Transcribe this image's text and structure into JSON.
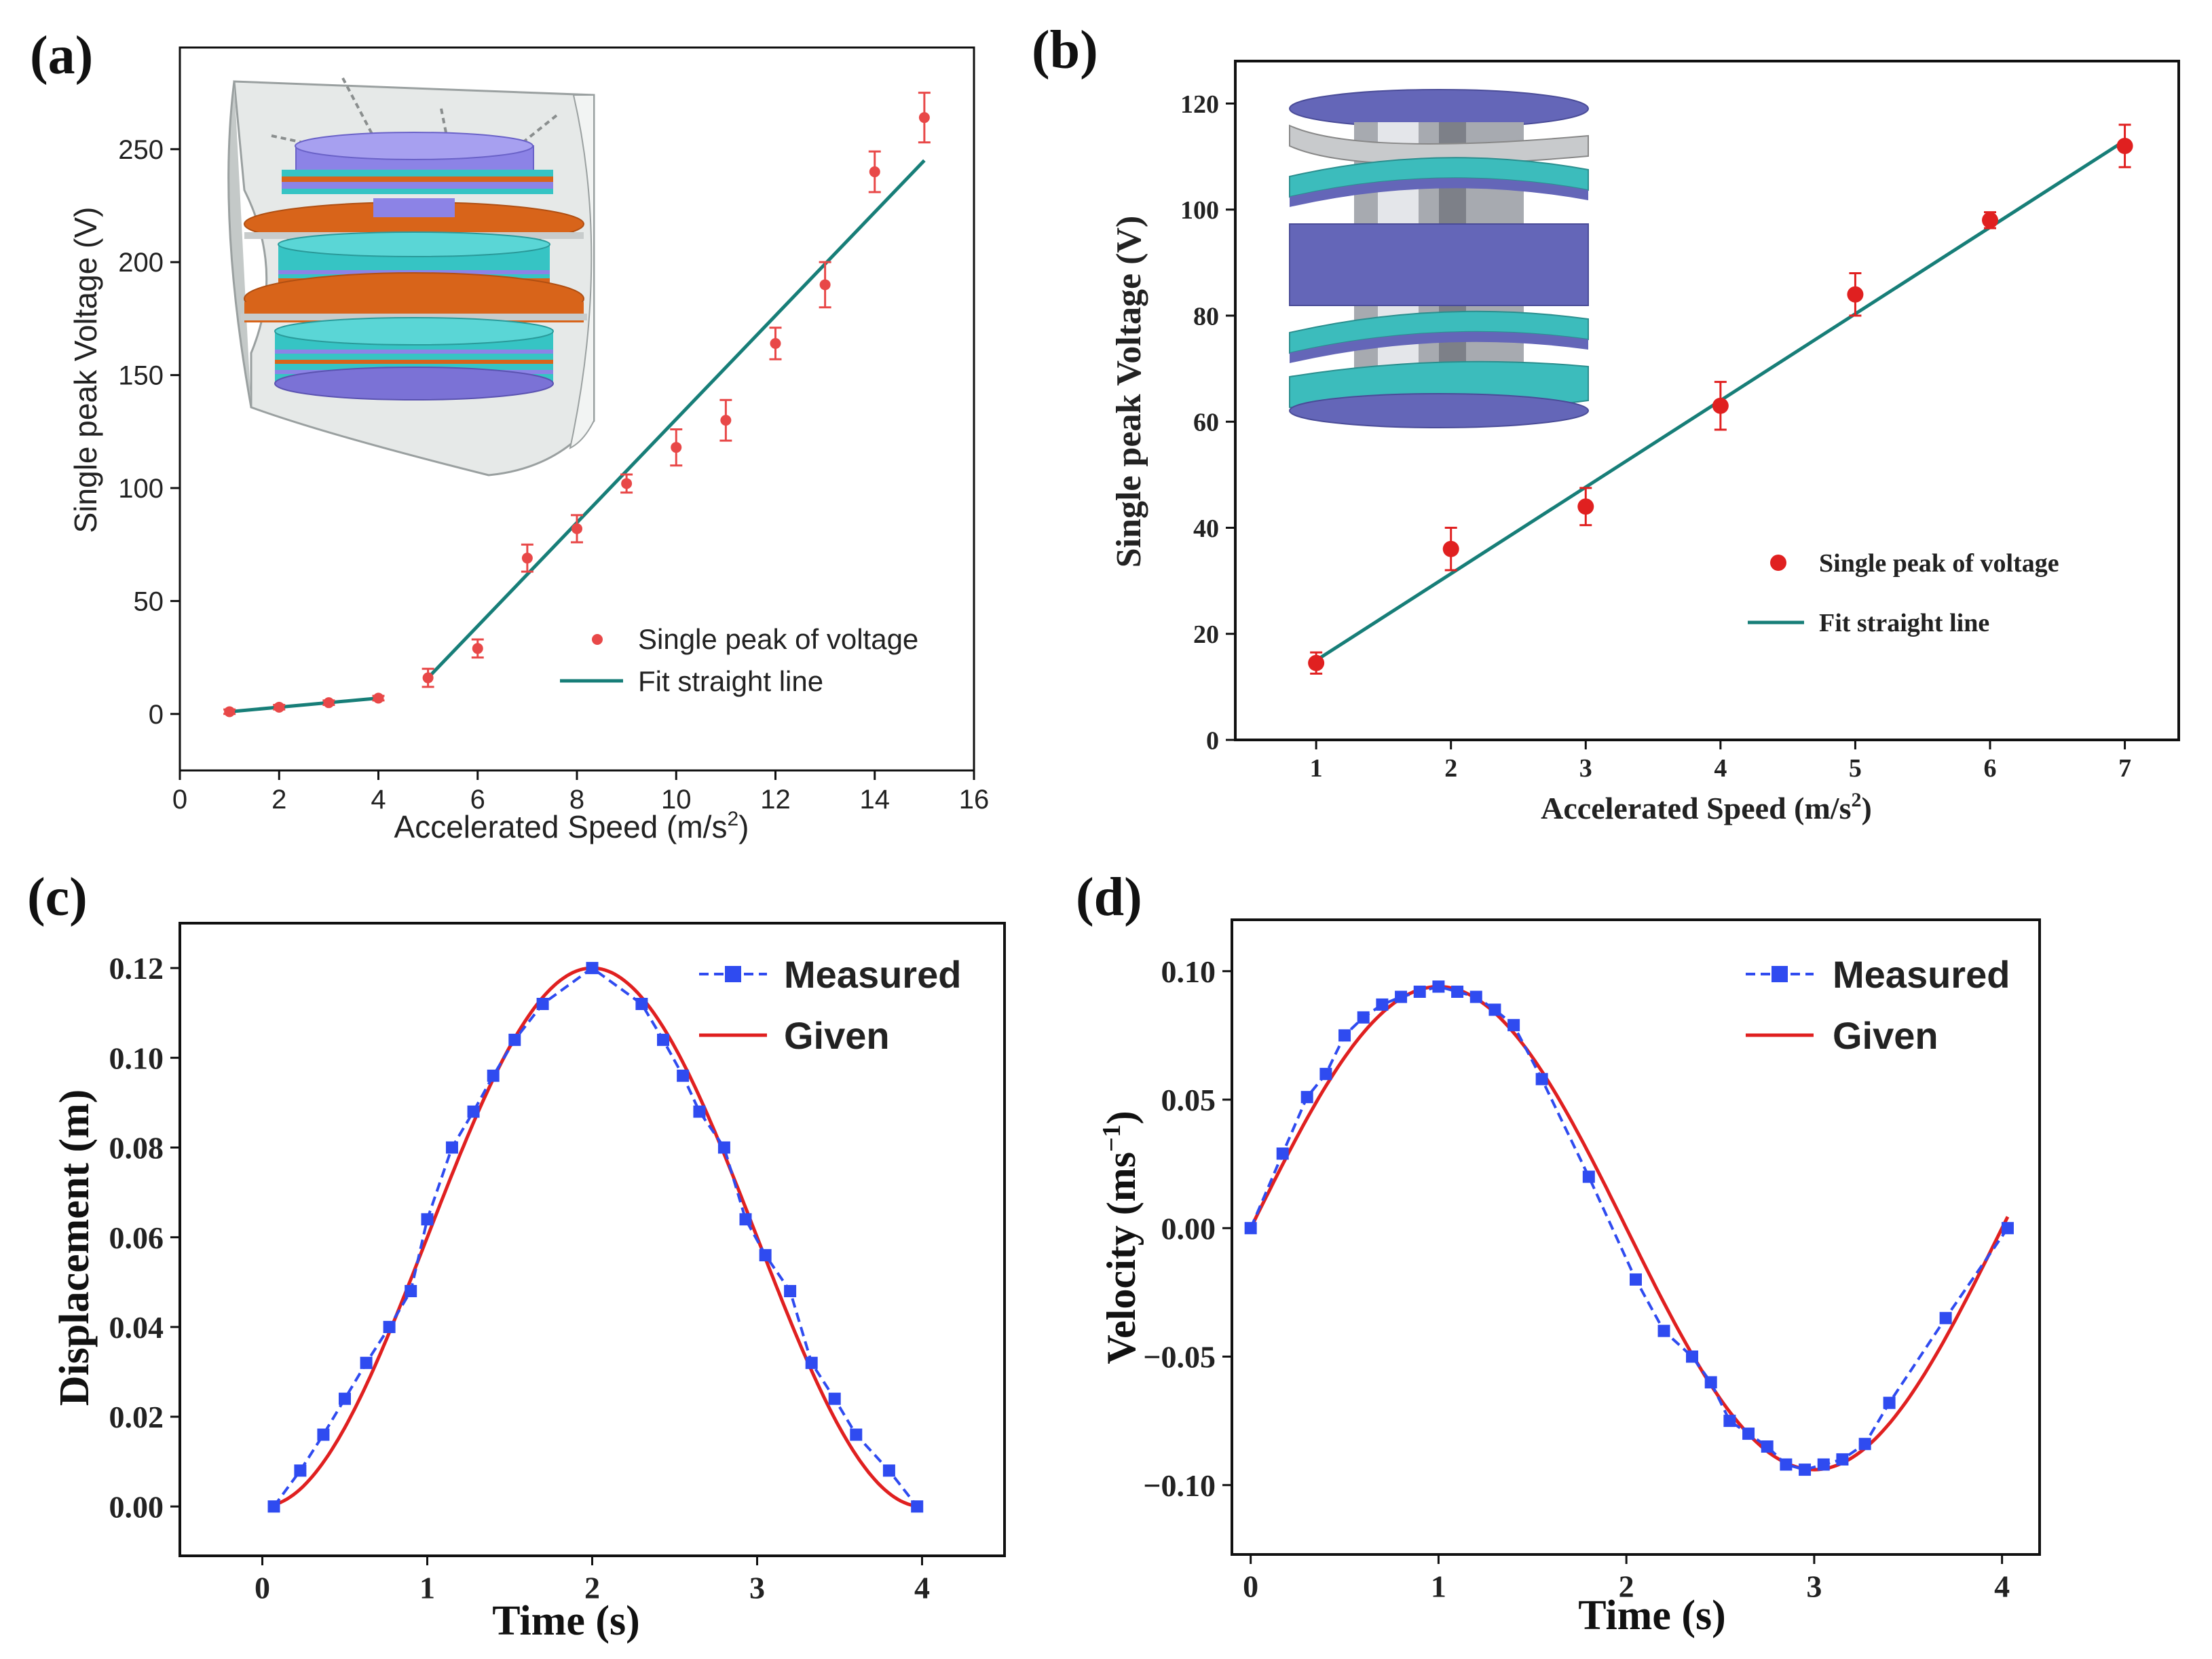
{
  "panels": [
    {
      "letter": "(a)",
      "xlabel": "Accelerated Speed (m/s",
      "xlabel_sup": "2",
      "xlabel_end": ")",
      "ylabel": "Single peak Voltage (V)",
      "legend": [
        "Single peak of voltage",
        "Fit straight line"
      ]
    },
    {
      "letter": "(b)",
      "xlabel": "Accelerated Speed (m/s",
      "xlabel_sup": "2",
      "xlabel_end": ")",
      "ylabel": "Single peak Voltage (V)",
      "legend": [
        "Single peak of voltage",
        "Fit straight line"
      ]
    },
    {
      "letter": "(c)",
      "xlabel": "Time (s)",
      "ylabel": "Displacement (m)",
      "legend": [
        "Measured",
        "Given"
      ]
    },
    {
      "letter": "(d)",
      "xlabel": "Time (s)",
      "ylabel": "Velocity (ms",
      "ylabel_sup": "−1",
      "ylabel_end": ")",
      "legend": [
        "Measured",
        "Given"
      ]
    }
  ],
  "colors": {
    "scatter_red": "#e84848",
    "fit_teal": "#177e78",
    "measured_blue": "#2f4bf0",
    "given_red": "#e02020",
    "inset_a_lavender": "#8c83e6",
    "inset_a_orange": "#d8641a",
    "inset_a_cyan": "#36c4c4",
    "inset_a_gray": "#c8cccc",
    "inset_b_purple": "#6466b8",
    "inset_b_cyan": "#3cbcbc"
  },
  "insets": {
    "a": "schematic-of-stacked-disc-generator-in-spring-housing",
    "b": "schematic-of-helical-spiral-generator"
  },
  "chart_data": [
    {
      "type": "scatter",
      "xlim": [
        0,
        16
      ],
      "ylim": [
        -25,
        295
      ],
      "xticks": [
        0,
        2,
        4,
        6,
        8,
        10,
        12,
        14,
        16
      ],
      "yticks": [
        0,
        50,
        100,
        150,
        200,
        250
      ],
      "series": [
        {
          "name": "Single peak of voltage",
          "x": [
            1,
            2,
            3,
            4,
            5,
            6,
            7,
            8,
            9,
            10,
            11,
            12,
            13,
            14,
            15
          ],
          "y": [
            1,
            3,
            5,
            7,
            16,
            29,
            69,
            82,
            102,
            118,
            130,
            164,
            190,
            240,
            264
          ],
          "err": [
            1,
            1,
            1,
            1,
            4,
            4,
            6,
            6,
            4,
            8,
            9,
            7,
            10,
            9,
            11
          ]
        },
        {
          "name": "Fit straight line",
          "segments": [
            {
              "x": [
                1,
                4
              ],
              "y": [
                1,
                7
              ]
            },
            {
              "x": [
                5,
                15
              ],
              "y": [
                16,
                245
              ]
            }
          ]
        }
      ]
    },
    {
      "type": "scatter",
      "xlim": [
        0.4,
        7.4
      ],
      "ylim": [
        0,
        128
      ],
      "xticks": [
        1,
        2,
        3,
        4,
        5,
        6,
        7
      ],
      "yticks": [
        0,
        20,
        40,
        60,
        80,
        100,
        120
      ],
      "series": [
        {
          "name": "Single peak of voltage",
          "x": [
            1,
            2,
            3,
            4,
            5,
            6,
            7
          ],
          "y": [
            14.5,
            36,
            44,
            63,
            84,
            98,
            112
          ],
          "err": [
            2,
            4,
            3.5,
            4.5,
            4,
            1.5,
            4
          ]
        },
        {
          "name": "Fit straight line",
          "x": [
            1,
            7
          ],
          "y": [
            15,
            113
          ]
        }
      ]
    },
    {
      "type": "line",
      "xlim": [
        -0.5,
        4.5
      ],
      "ylim": [
        -0.011,
        0.13
      ],
      "xticks": [
        0,
        1,
        2,
        3,
        4
      ],
      "yticks": [
        0.0,
        0.02,
        0.04,
        0.06,
        0.08,
        0.1,
        0.12
      ],
      "ytick_labels": [
        "0.00",
        "0.02",
        "0.04",
        "0.06",
        "0.08",
        "0.10",
        "0.12"
      ],
      "series": [
        {
          "name": "Measured",
          "x": [
            0.07,
            0.23,
            0.37,
            0.5,
            0.63,
            0.77,
            0.9,
            1.0,
            1.15,
            1.28,
            1.4,
            1.53,
            1.7,
            2.0,
            2.3,
            2.43,
            2.55,
            2.65,
            2.8,
            2.93,
            3.05,
            3.2,
            3.33,
            3.47,
            3.6,
            3.8,
            3.97
          ],
          "y": [
            0.0,
            0.008,
            0.016,
            0.024,
            0.032,
            0.04,
            0.048,
            0.064,
            0.08,
            0.088,
            0.096,
            0.104,
            0.112,
            0.12,
            0.112,
            0.104,
            0.096,
            0.088,
            0.08,
            0.064,
            0.056,
            0.048,
            0.032,
            0.024,
            0.016,
            0.008,
            0.0
          ]
        },
        {
          "name": "Given",
          "function": "0.06*(1-cos(pi*t/2))",
          "x_range": [
            0.07,
            3.97
          ]
        }
      ]
    },
    {
      "type": "line",
      "xlim": [
        -0.1,
        4.2
      ],
      "ylim": [
        -0.127,
        0.12
      ],
      "xticks": [
        0,
        1,
        2,
        3,
        4
      ],
      "yticks": [
        -0.1,
        -0.05,
        0.0,
        0.05,
        0.1
      ],
      "ytick_labels": [
        "−0.10",
        "−0.05",
        "0.00",
        "0.05",
        "0.10"
      ],
      "series": [
        {
          "name": "Measured",
          "x": [
            0.0,
            0.17,
            0.3,
            0.4,
            0.5,
            0.6,
            0.7,
            0.8,
            0.9,
            1.0,
            1.1,
            1.2,
            1.3,
            1.4,
            1.55,
            1.8,
            2.05,
            2.2,
            2.35,
            2.45,
            2.55,
            2.65,
            2.75,
            2.85,
            2.95,
            3.05,
            3.15,
            3.27,
            3.4,
            3.7,
            4.03
          ],
          "y": [
            0.0,
            0.029,
            0.051,
            0.06,
            0.075,
            0.082,
            0.087,
            0.09,
            0.092,
            0.094,
            0.092,
            0.09,
            0.085,
            0.079,
            0.058,
            0.02,
            -0.02,
            -0.04,
            -0.05,
            -0.06,
            -0.075,
            -0.08,
            -0.085,
            -0.092,
            -0.094,
            -0.092,
            -0.09,
            -0.084,
            -0.068,
            -0.035,
            0.0
          ]
        },
        {
          "name": "Given",
          "function": "0.094*sin(pi*t/2)",
          "x_range": [
            0.0,
            4.03
          ]
        }
      ]
    }
  ]
}
